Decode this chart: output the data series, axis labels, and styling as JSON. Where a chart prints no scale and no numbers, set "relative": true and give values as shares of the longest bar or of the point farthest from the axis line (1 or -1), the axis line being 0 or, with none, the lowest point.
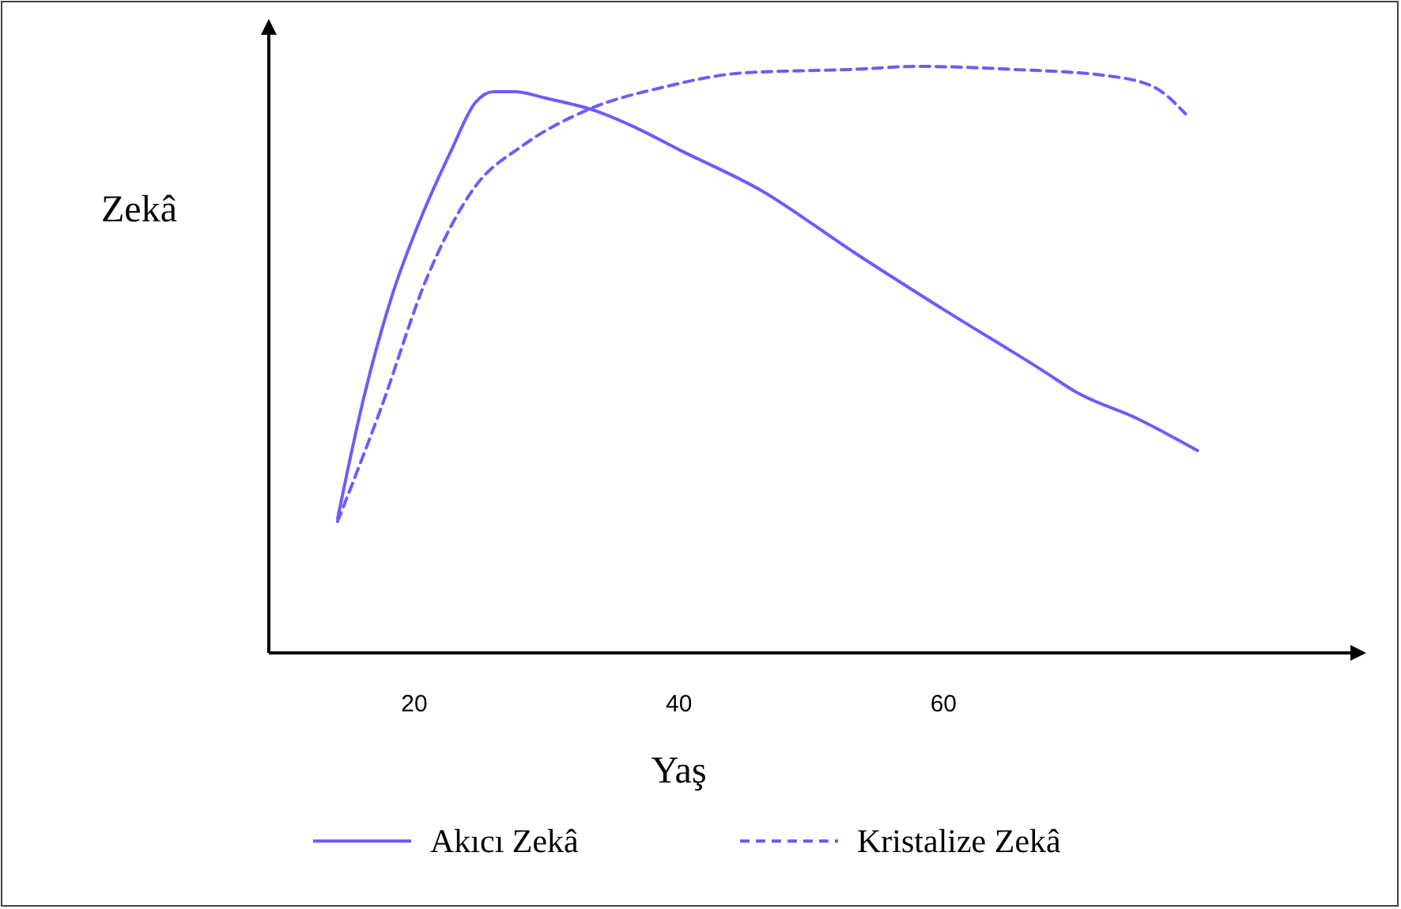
{
  "chart_data": {
    "type": "line",
    "relative": true,
    "ylabel": "Zekâ",
    "xlabel": "Yaş",
    "xlim": [
      9,
      91
    ],
    "xticks": [
      20,
      40,
      60
    ],
    "tick_labels": "x",
    "legend": "bottom",
    "series": [
      {
        "name": "Akıcı Zekâ",
        "color": "#6a5cff",
        "line_style": "solid",
        "x": [
          14.2,
          16.2,
          18.4,
          20.4,
          22.8,
          24.6,
          26.0,
          27.6,
          29.9,
          33.6,
          36.5,
          40.1,
          46.1,
          53.3,
          60.4,
          67.6,
          70.0,
          74.7,
          79.2
        ],
        "values": [
          0.229,
          0.437,
          0.615,
          0.736,
          0.857,
          0.938,
          0.957,
          0.957,
          0.946,
          0.925,
          0.898,
          0.857,
          0.79,
          0.682,
          0.58,
          0.48,
          0.445,
          0.399,
          0.345
        ]
      },
      {
        "name": "Kristalize Zekâ",
        "color": "#6a5cff",
        "line_style": "dashed",
        "x": [
          14.2,
          17.4,
          21.0,
          24.6,
          28.2,
          33.0,
          38.9,
          44.9,
          53.3,
          58.0,
          65.2,
          72.4,
          75.9,
          78.3
        ],
        "values": [
          0.224,
          0.412,
          0.642,
          0.795,
          0.865,
          0.925,
          0.965,
          0.989,
          0.995,
          1.0,
          0.995,
          0.984,
          0.965,
          0.919
        ]
      }
    ]
  }
}
